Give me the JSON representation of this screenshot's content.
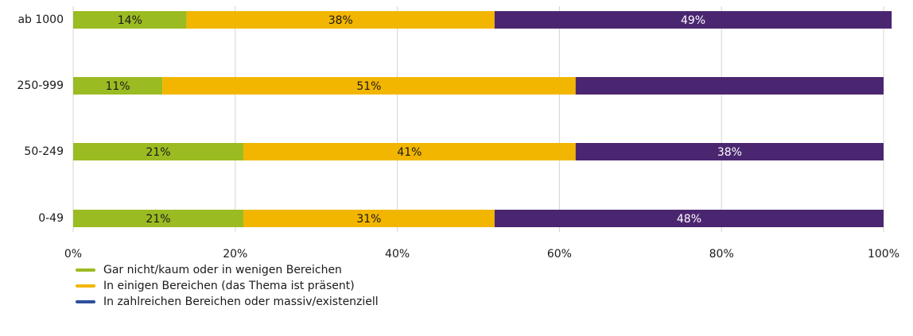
{
  "chart_data": {
    "type": "stacked-barh",
    "categories": [
      "ab 1000",
      "250-999",
      "50-249",
      "0-49"
    ],
    "series": [
      {
        "name": "Gar nicht/kaum oder in wenigen Bereichen",
        "color": "#9bbb22",
        "label_color": "#1a1a1a",
        "values": [
          14,
          11,
          21,
          21
        ],
        "value_labels": [
          "14%",
          "11%",
          "21%",
          "21%"
        ]
      },
      {
        "name": "In einigen Bereichen (das Thema ist präsent)",
        "color": "#f2b600",
        "label_color": "#1a1a1a",
        "values": [
          38,
          51,
          41,
          31
        ],
        "value_labels": [
          "38%",
          "51%",
          "41%",
          "31%"
        ]
      },
      {
        "name": "In zahlreichen Bereichen oder massiv/existenziell",
        "color": "#4b2670",
        "legend_color": "#2f4f9a",
        "label_color": "#ffffff",
        "values": [
          49,
          38,
          38,
          48
        ],
        "value_labels": [
          "49%",
          null,
          "38%",
          "48%"
        ]
      }
    ],
    "xlim": [
      0,
      100
    ],
    "xticks": [
      {
        "value": 0,
        "label": "0%"
      },
      {
        "value": 20,
        "label": "20%"
      },
      {
        "value": 40,
        "label": "40%"
      },
      {
        "value": 60,
        "label": "60%"
      },
      {
        "value": 80,
        "label": "80%"
      },
      {
        "value": 100,
        "label": "100%"
      }
    ],
    "grid": true,
    "legend": "bottom-left"
  }
}
